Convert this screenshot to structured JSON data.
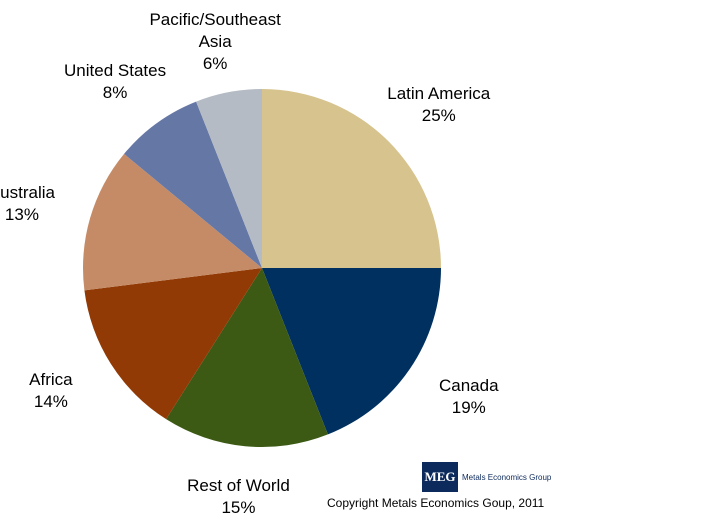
{
  "chart_data": {
    "type": "pie",
    "categories": [
      "Latin America",
      "Canada",
      "Rest of World",
      "Africa",
      "Australia",
      "United States",
      "Pacific/Southeast Asia"
    ],
    "values": [
      25,
      19,
      15,
      14,
      13,
      8,
      6
    ],
    "value_labels": [
      "25%",
      "19%",
      "15%",
      "14%",
      "13%",
      "8%",
      "6%"
    ],
    "colors": [
      "#d6c38e",
      "#00305f",
      "#3c5a14",
      "#923a05",
      "#c58b66",
      "#6577a5",
      "#b4bbc4"
    ]
  },
  "logo": {
    "mark": "MEG",
    "name": "Metals Economics Group"
  },
  "copyright": "Copyright Metals Economics Goup, 2011"
}
